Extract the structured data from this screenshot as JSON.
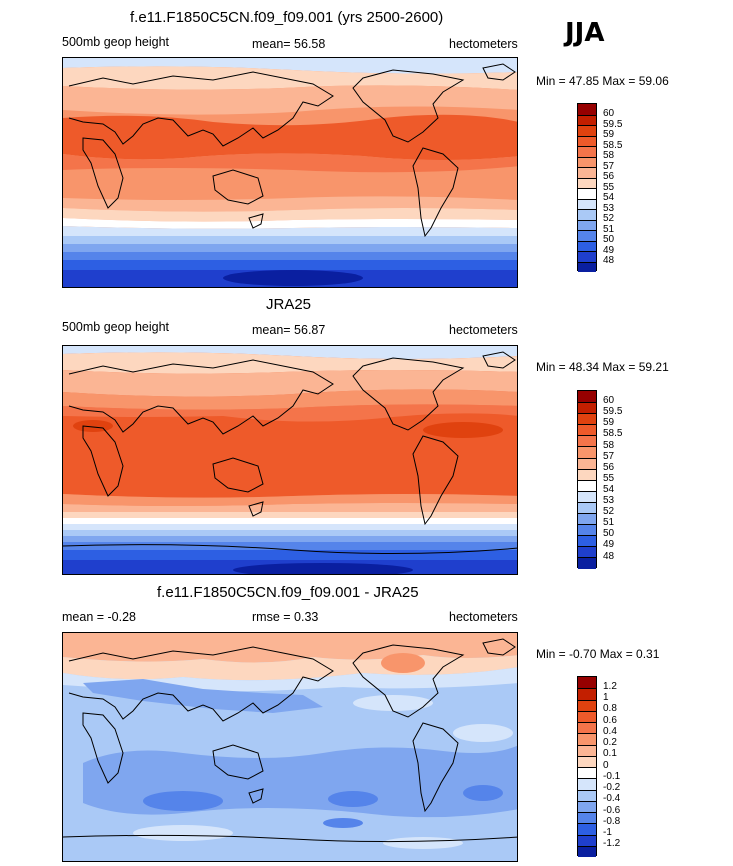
{
  "season": "JJA",
  "panels": [
    {
      "title": "f.e11.F1850C5CN.f09_f09.001 (yrs 2500-2600)",
      "left_label": "500mb geop height",
      "center_label": "mean=  56.58",
      "right_label": "hectometers",
      "minmax": "Min =  47.85 Max =  59.06",
      "colorbar_labels": [
        "60",
        "59.5",
        "59",
        "58.5",
        "58",
        "57",
        "56",
        "55",
        "54",
        "53",
        "52",
        "51",
        "50",
        "49",
        "48"
      ]
    },
    {
      "title": "JRA25",
      "left_label": "500mb geop height",
      "center_label": "mean=  56.87",
      "right_label": "hectometers",
      "minmax": "Min =  48.34 Max =  59.21",
      "colorbar_labels": [
        "60",
        "59.5",
        "59",
        "58.5",
        "58",
        "57",
        "56",
        "55",
        "54",
        "53",
        "52",
        "51",
        "50",
        "49",
        "48"
      ]
    },
    {
      "title": "f.e11.F1850C5CN.f09_f09.001 - JRA25",
      "left_label": "mean =  -0.28",
      "center_label": "rmse =   0.33",
      "right_label": "hectometers",
      "minmax": "Min =  -0.70 Max =   0.31",
      "colorbar_labels": [
        "1.2",
        "1",
        "0.8",
        "0.6",
        "0.4",
        "0.2",
        "0.1",
        "0",
        "-0.1",
        "-0.2",
        "-0.4",
        "-0.6",
        "-0.8",
        "-1",
        "-1.2"
      ]
    }
  ],
  "colors": {
    "abs_scale": [
      "#960000",
      "#c31f00",
      "#e0420f",
      "#ee5a2a",
      "#f4744a",
      "#f8956b",
      "#fbb594",
      "#fdd7bf",
      "#ffffff",
      "#d5e5fb",
      "#aac9f6",
      "#7fa6ef",
      "#5584ea",
      "#2d5fe3",
      "#1f3fcd",
      "#0a1fa0"
    ],
    "diff_scale": [
      "#960000",
      "#c31f00",
      "#e0420f",
      "#ee5a2a",
      "#f4744a",
      "#f8956b",
      "#fbb594",
      "#fdd7bf",
      "#ffffff",
      "#d5e5fb",
      "#aac9f6",
      "#7fa6ef",
      "#5584ea",
      "#2d5fe3",
      "#1f3fcd",
      "#0a1fa0"
    ]
  }
}
